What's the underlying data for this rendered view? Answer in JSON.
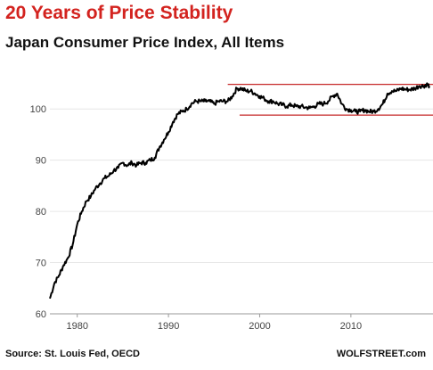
{
  "title": "20 Years of Price Stability",
  "subtitle": "Japan Consumer Price Index, All Items",
  "source": "Source: St. Louis Fed, OECD",
  "brand": "WOLFSTREET.com",
  "colors": {
    "title": "#d3231f",
    "series": "#000000",
    "reference_lines": "#c62828",
    "grid": "#e6e6e6"
  },
  "chart_data": {
    "type": "line",
    "title": "20 Years of Price Stability",
    "subtitle": "Japan Consumer Price Index, All Items",
    "xlabel": "",
    "ylabel": "",
    "xlim": [
      1977,
      2019
    ],
    "ylim": [
      60,
      107
    ],
    "x_ticks": [
      1980,
      1990,
      2000,
      2010
    ],
    "y_ticks": [
      60,
      70,
      80,
      90,
      100
    ],
    "grid": "horizontal",
    "legend": "none",
    "series": [
      {
        "x": [
          1977.0,
          1977.5,
          1978.0,
          1978.5,
          1979.0,
          1979.5,
          1980.0,
          1980.5,
          1981.0,
          1981.5,
          1982.0,
          1982.5,
          1983.0,
          1983.5,
          1984.0,
          1984.5,
          1985.0,
          1985.5,
          1986.0,
          1986.5,
          1987.0,
          1987.5,
          1988.0,
          1988.5,
          1989.0,
          1989.5,
          1990.0,
          1990.5,
          1991.0,
          1991.5,
          1992.0,
          1992.5,
          1993.0,
          1993.5,
          1994.0,
          1994.5,
          1995.0,
          1995.5,
          1996.0,
          1996.5,
          1997.0,
          1997.5,
          1998.0,
          1998.5,
          1999.0,
          1999.5,
          2000.0,
          2000.5,
          2001.0,
          2001.5,
          2002.0,
          2002.5,
          2003.0,
          2003.5,
          2004.0,
          2004.5,
          2005.0,
          2005.5,
          2006.0,
          2006.5,
          2007.0,
          2007.5,
          2008.0,
          2008.5,
          2009.0,
          2009.5,
          2010.0,
          2010.5,
          2011.0,
          2011.5,
          2012.0,
          2012.5,
          2013.0,
          2013.5,
          2014.0,
          2014.5,
          2015.0,
          2015.5,
          2016.0,
          2016.5,
          2017.0,
          2017.5,
          2018.0,
          2018.3,
          2018.6
        ],
        "values": [
          63.0,
          66.0,
          67.5,
          69.5,
          71.0,
          73.5,
          77.5,
          80.0,
          82.0,
          83.0,
          84.5,
          85.5,
          86.5,
          87.0,
          88.0,
          88.5,
          89.5,
          89.0,
          89.5,
          89.0,
          89.5,
          89.5,
          90.0,
          90.5,
          92.5,
          94.0,
          95.5,
          97.5,
          99.0,
          99.5,
          100.0,
          101.0,
          101.5,
          101.5,
          101.5,
          101.5,
          101.0,
          101.5,
          101.5,
          101.5,
          102.5,
          104.0,
          104.0,
          103.5,
          103.5,
          103.0,
          102.5,
          102.0,
          101.5,
          101.5,
          101.0,
          100.8,
          100.5,
          100.8,
          100.5,
          100.5,
          100.3,
          100.2,
          100.5,
          101.0,
          101.0,
          101.5,
          102.5,
          103.0,
          101.0,
          100.0,
          99.8,
          99.5,
          99.5,
          99.8,
          99.5,
          99.5,
          100.0,
          101.0,
          103.0,
          103.5,
          103.5,
          104.0,
          103.8,
          103.8,
          104.0,
          104.5,
          104.5,
          104.8,
          104.5
        ]
      }
    ],
    "reference_lines": [
      {
        "y": 104.8,
        "x_start": 1996.5,
        "x_end": 2019
      },
      {
        "y": 98.8,
        "x_start": 1997.8,
        "x_end": 2019
      }
    ]
  }
}
